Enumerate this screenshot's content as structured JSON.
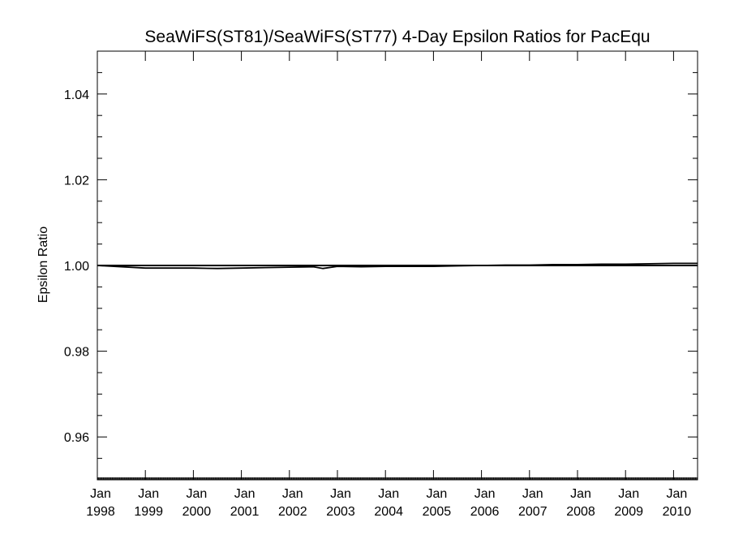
{
  "chart_data": {
    "type": "line",
    "title": "SeaWiFS(ST81)/SeaWiFS(ST77) 4-Day Epsilon Ratios for PacEqu",
    "ylabel": "Epsilon Ratio",
    "xlabel": "",
    "ylim": [
      0.95,
      1.05
    ],
    "xlim": [
      1998.0,
      2010.5
    ],
    "y_ticks": [
      "0.96",
      "0.98",
      "1.00",
      "1.02",
      "1.04"
    ],
    "y_tick_values": [
      0.96,
      0.98,
      1.0,
      1.02,
      1.04
    ],
    "x_ticks": [
      {
        "year": 1998,
        "line1": "Jan",
        "line2": "1998"
      },
      {
        "year": 1999,
        "line1": "Jan",
        "line2": "1999"
      },
      {
        "year": 2000,
        "line1": "Jan",
        "line2": "2000"
      },
      {
        "year": 2001,
        "line1": "Jan",
        "line2": "2001"
      },
      {
        "year": 2002,
        "line1": "Jan",
        "line2": "2002"
      },
      {
        "year": 2003,
        "line1": "Jan",
        "line2": "2003"
      },
      {
        "year": 2004,
        "line1": "Jan",
        "line2": "2004"
      },
      {
        "year": 2005,
        "line1": "Jan",
        "line2": "2005"
      },
      {
        "year": 2006,
        "line1": "Jan",
        "line2": "2006"
      },
      {
        "year": 2007,
        "line1": "Jan",
        "line2": "2007"
      },
      {
        "year": 2008,
        "line1": "Jan",
        "line2": "2008"
      },
      {
        "year": 2009,
        "line1": "Jan",
        "line2": "2009"
      },
      {
        "year": 2010,
        "line1": "Jan",
        "line2": "2010"
      }
    ],
    "grid": false,
    "reference_line": 1.0,
    "series": [
      {
        "color": "#000000",
        "x": [
          1998.0,
          1998.5,
          1999.0,
          1999.5,
          2000.0,
          2000.5,
          2001.0,
          2001.5,
          2002.0,
          2002.5,
          2002.7,
          2003.0,
          2003.5,
          2004.0,
          2004.5,
          2005.0,
          2005.5,
          2006.0,
          2006.5,
          2007.0,
          2007.5,
          2008.0,
          2008.5,
          2009.0,
          2009.5,
          2010.0,
          2010.5
        ],
        "y": [
          1.0,
          0.9997,
          0.9994,
          0.9994,
          0.9994,
          0.9993,
          0.9994,
          0.9995,
          0.9996,
          0.9997,
          0.9993,
          0.9998,
          0.9997,
          0.9998,
          0.9998,
          0.9998,
          0.9999,
          1.0,
          1.0001,
          1.0001,
          1.0002,
          1.0002,
          1.0003,
          1.0003,
          1.0004,
          1.0005,
          1.0005
        ]
      }
    ]
  }
}
